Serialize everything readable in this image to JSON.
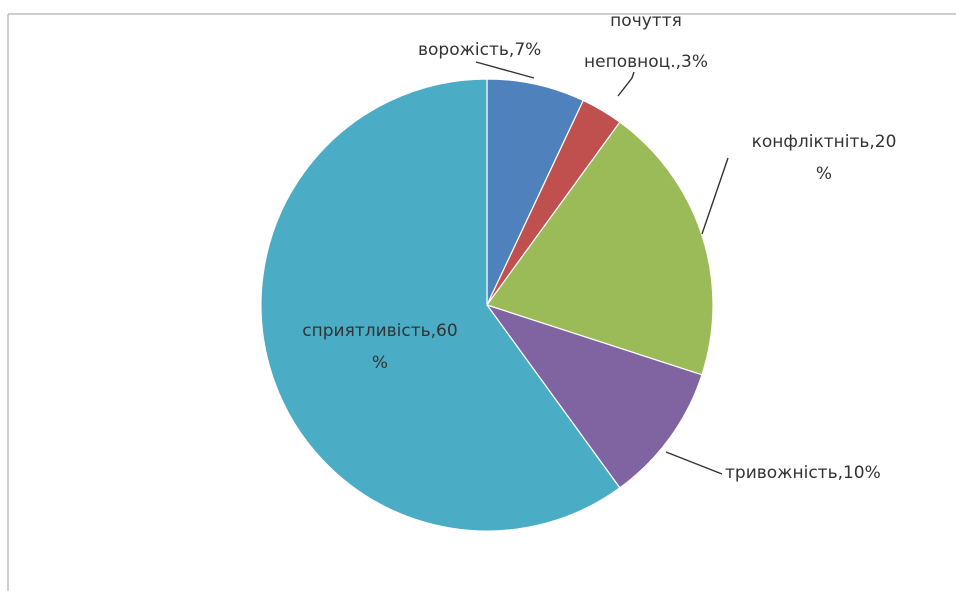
{
  "chart_data": {
    "type": "pie",
    "slices": [
      {
        "label": "ворожість,7%",
        "value": 7,
        "color": "#4F81BD"
      },
      {
        "label_lines": [
          "почуття",
          "неповноц.,3%"
        ],
        "value": 3,
        "color": "#C0504D"
      },
      {
        "label_lines": [
          "конфліктніть,20",
          "%"
        ],
        "value": 20,
        "color": "#9BBB59"
      },
      {
        "label": "тривожність,10%",
        "value": 10,
        "color": "#8064A2"
      },
      {
        "label_lines": [
          "сприятливість,60",
          "%"
        ],
        "value": 60,
        "color": "#4BACC6"
      }
    ]
  }
}
